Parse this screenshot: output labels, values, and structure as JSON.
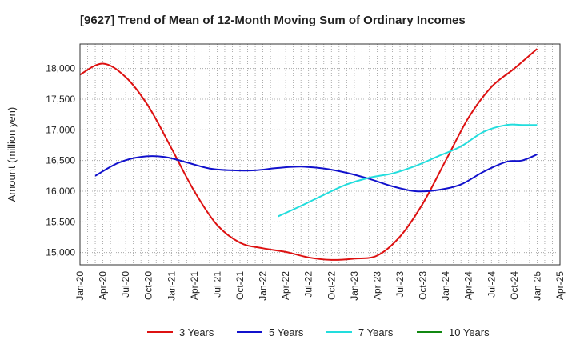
{
  "chart_data": {
    "type": "line",
    "title": "[9627]  Trend of Mean of 12-Month Moving Sum of Ordinary Incomes",
    "xlabel": "",
    "ylabel": "Amount (million yen)",
    "ylim": [
      14800,
      18400
    ],
    "yticks": [
      15000,
      15500,
      16000,
      16500,
      17000,
      17500,
      18000
    ],
    "ytick_labels": [
      "15,000",
      "15,500",
      "16,000",
      "16,500",
      "17,000",
      "17,500",
      "18,000"
    ],
    "xlim": [
      0,
      63
    ],
    "x_ticks": [
      "Jan-20",
      "Apr-20",
      "Jul-20",
      "Oct-20",
      "Jan-21",
      "Apr-21",
      "Jul-21",
      "Oct-21",
      "Jan-22",
      "Apr-22",
      "Jul-22",
      "Oct-22",
      "Jan-23",
      "Apr-23",
      "Jul-23",
      "Oct-23",
      "Jan-24",
      "Apr-24",
      "Jul-24",
      "Oct-24",
      "Jan-25",
      "Apr-25"
    ],
    "x_unit": "months since Jan-20",
    "grid": true,
    "legend_position": "bottom",
    "series": [
      {
        "name": "3 Years",
        "color": "#dd1111",
        "x": [
          0,
          3,
          6,
          9,
          12,
          15,
          18,
          21,
          24,
          27,
          30,
          33,
          36,
          39,
          42,
          45,
          48,
          51,
          54,
          57,
          60
        ],
        "values": [
          17900,
          18080,
          17860,
          17380,
          16700,
          16000,
          15450,
          15160,
          15070,
          15010,
          14920,
          14880,
          14900,
          14950,
          15260,
          15800,
          16500,
          17200,
          17700,
          18000,
          18320
        ]
      },
      {
        "name": "5 Years",
        "color": "#1111cc",
        "x": [
          2,
          5,
          8,
          11,
          14,
          17,
          20,
          23,
          26,
          29,
          32,
          35,
          38,
          41,
          44,
          47,
          50,
          53,
          56,
          58,
          60
        ],
        "values": [
          16250,
          16460,
          16560,
          16560,
          16470,
          16370,
          16340,
          16340,
          16380,
          16400,
          16370,
          16300,
          16200,
          16080,
          16000,
          16020,
          16110,
          16320,
          16480,
          16500,
          16600
        ]
      },
      {
        "name": "7 Years",
        "color": "#22dddd",
        "x": [
          26,
          29,
          32,
          35,
          38,
          41,
          44,
          47,
          50,
          53,
          56,
          58,
          60
        ],
        "values": [
          15590,
          15760,
          15940,
          16110,
          16220,
          16290,
          16410,
          16570,
          16730,
          16970,
          17080,
          17080,
          17080
        ]
      },
      {
        "name": "10 Years",
        "color": "#118811",
        "x": [],
        "values": []
      }
    ]
  }
}
